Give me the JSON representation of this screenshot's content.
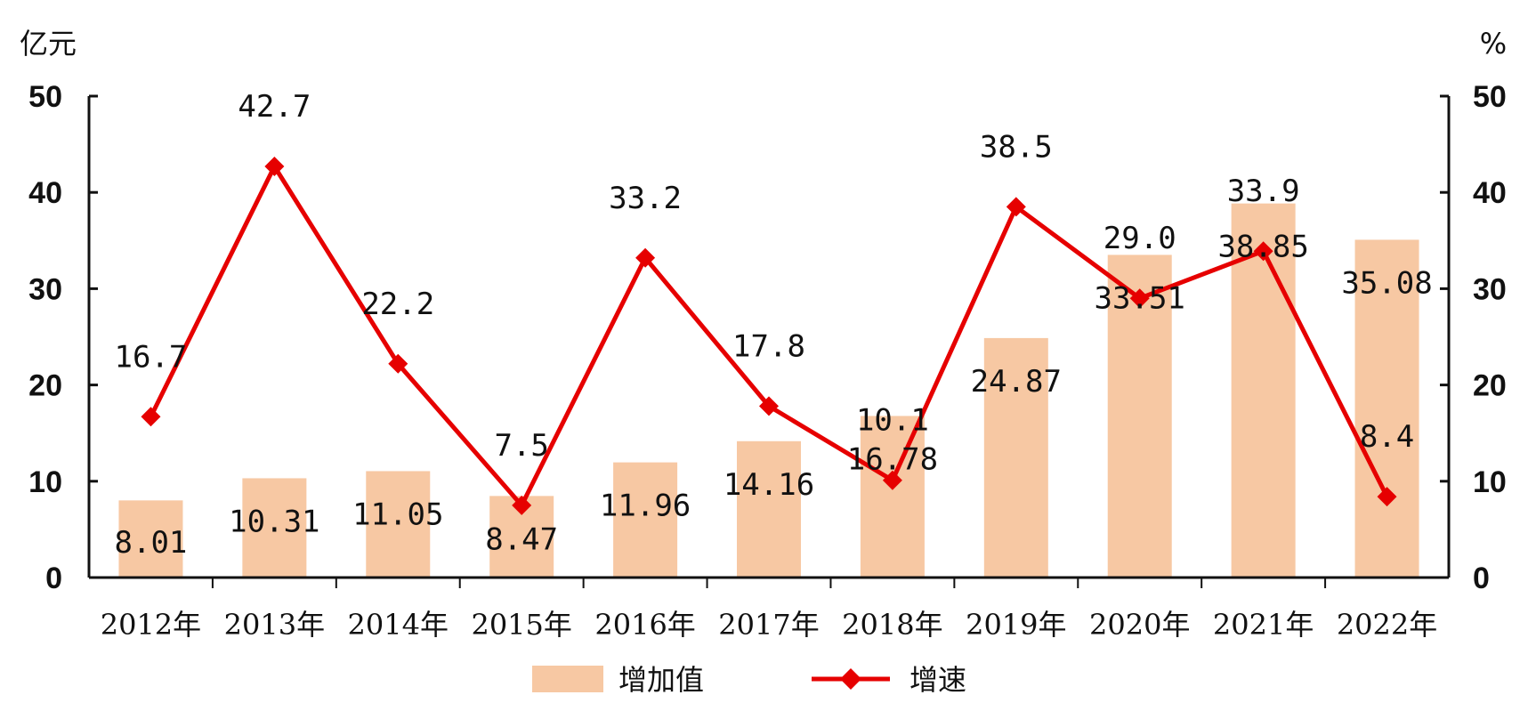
{
  "chart_data": {
    "type": "bar",
    "title": "",
    "categories": [
      "2012年",
      "2013年",
      "2014年",
      "2015年",
      "2016年",
      "2017年",
      "2018年",
      "2019年",
      "2020年",
      "2021年",
      "2022年"
    ],
    "series": [
      {
        "name": "增加值",
        "type": "bar",
        "axis": "left",
        "color": "#f7c8a3",
        "values": [
          8.01,
          10.31,
          11.05,
          8.47,
          11.96,
          14.16,
          16.78,
          24.87,
          33.51,
          38.85,
          35.08
        ],
        "labels": [
          "8.01",
          "10.31",
          "11.05",
          "8.47",
          "11.96",
          "14.16",
          "16.78",
          "24.87",
          "33.51",
          "38.85",
          "35.08"
        ]
      },
      {
        "name": "增速",
        "type": "line",
        "axis": "right",
        "color": "#e60000",
        "values": [
          16.7,
          42.7,
          22.2,
          7.5,
          33.2,
          17.8,
          10.1,
          38.5,
          29.0,
          33.9,
          8.4
        ],
        "labels": [
          "16.7",
          "42.7",
          "22.2",
          "7.5",
          "33.2",
          "17.8",
          "10.1",
          "38.5",
          "29.0",
          "33.9",
          "8.4"
        ]
      }
    ],
    "y_left": {
      "label": "亿元",
      "ylim": [
        0,
        50
      ],
      "ticks": [
        "0",
        "10",
        "20",
        "30",
        "40",
        "50"
      ]
    },
    "y_right": {
      "label": "%",
      "ylim": [
        0,
        50
      ],
      "ticks": [
        "0",
        "10",
        "20",
        "30",
        "40",
        "50"
      ]
    },
    "grid": false,
    "legend": "bottom-center"
  }
}
